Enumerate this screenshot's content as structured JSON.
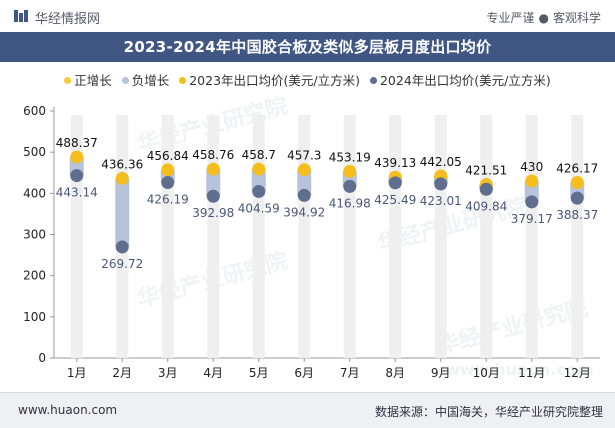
{
  "header": {
    "brand": "华经情报网",
    "slogan_left": "专业严谨",
    "slogan_sep": "●",
    "slogan_right": "客观科学"
  },
  "title_bar": {
    "title": "2023-2024年中国胶合板及类似多层板月度出口均价"
  },
  "legend": {
    "items": [
      {
        "label": "正增长",
        "color": "#f2cc3c"
      },
      {
        "label": "负增长",
        "color": "#b7c3da"
      },
      {
        "label": "2023年出口均价(美元/立方米)",
        "color": "#f5be1d"
      },
      {
        "label": "2024年出口均价(美元/立方米)",
        "color": "#5f6e8f"
      }
    ]
  },
  "watermark": {
    "text": "华经产业研究院",
    "url": "www.huaon.com"
  },
  "footer": {
    "website": "www.huaon.com",
    "source": "数据来源：中国海关，华经产业研究院整理"
  },
  "chart_data": {
    "type": "dumbbell",
    "title": "2023-2024年中国胶合板及类似多层板月度出口均价",
    "categories": [
      "1月",
      "2月",
      "3月",
      "4月",
      "5月",
      "6月",
      "7月",
      "8月",
      "9月",
      "10月",
      "11月",
      "12月"
    ],
    "series": [
      {
        "name": "2023年出口均价(美元/立方米)",
        "color": "#f5be1d",
        "values": [
          488.37,
          436.36,
          456.84,
          458.76,
          458.7,
          457.3,
          453.19,
          439.13,
          442.05,
          421.51,
          430,
          426.17
        ]
      },
      {
        "name": "2024年出口均价(美元/立方米)",
        "color": "#5f6e8f",
        "values": [
          443.14,
          269.72,
          426.19,
          392.98,
          404.59,
          394.92,
          416.98,
          425.49,
          423.01,
          409.84,
          379.17,
          388.37
        ]
      }
    ],
    "yticks": [
      0,
      100,
      200,
      300,
      400,
      500,
      600
    ],
    "ylim": [
      0,
      600
    ],
    "positive_color": "#f2cc3c",
    "negative_color": "#b7c3da",
    "track_color": "#efefef",
    "label_2023_color": "#111111",
    "label_2024_color": "#4a5775"
  }
}
